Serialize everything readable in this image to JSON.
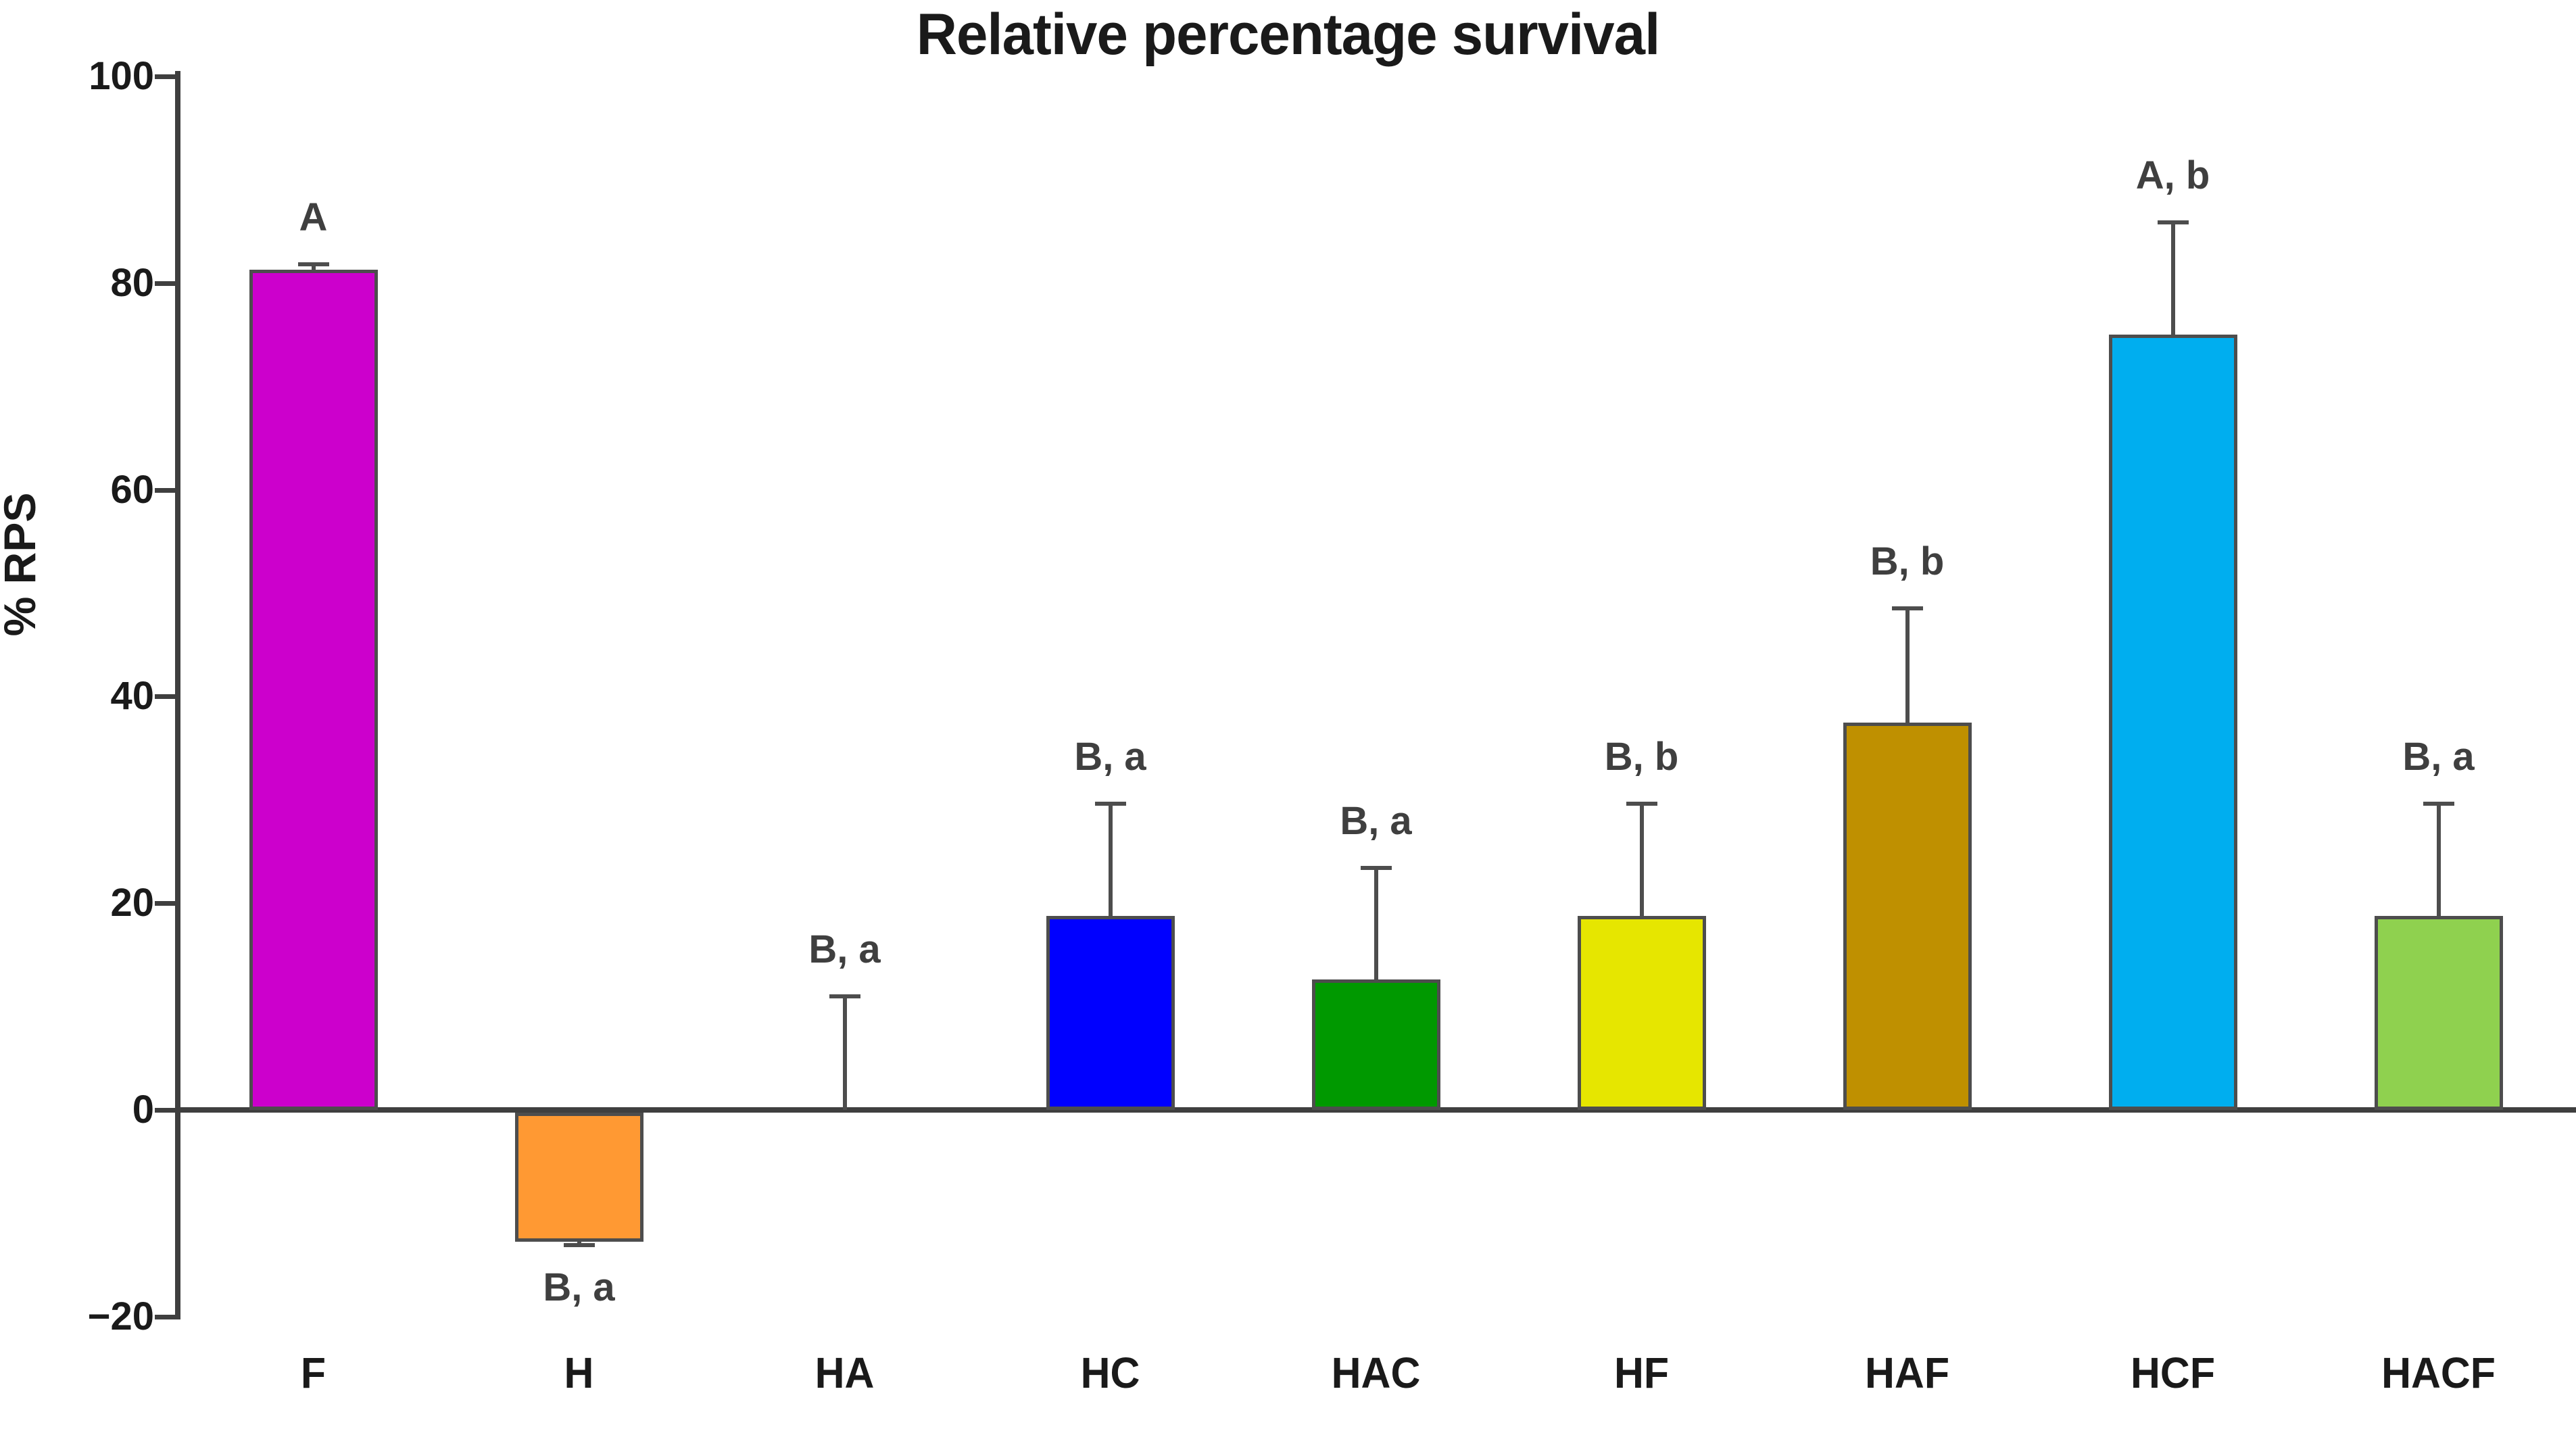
{
  "page": {
    "background": "#ffffff"
  },
  "chart_data": {
    "type": "bar",
    "title": "Relative percentage survival",
    "xlabel": "",
    "ylabel": "% RPS",
    "ylim": [
      -20,
      100
    ],
    "yticks": [
      100,
      80,
      60,
      40,
      20,
      0,
      -20
    ],
    "grid": false,
    "legend_position": "none",
    "categories": [
      "F",
      "H",
      "HA",
      "HC",
      "HAC",
      "HF",
      "HAF",
      "HCF",
      "HACF"
    ],
    "series": [
      {
        "name": "% RPS",
        "values": [
          81.3,
          -12.5,
          0,
          18.8,
          12.6,
          18.8,
          37.5,
          75,
          18.8
        ],
        "errors_up": [
          0.5,
          0,
          11,
          10.8,
          10.8,
          10.8,
          11,
          10.9,
          10.8
        ],
        "errors_down": [
          0,
          0.6,
          0,
          0,
          0,
          0,
          0,
          0,
          0
        ],
        "bar_colors": [
          "#cc00cc",
          "#ff9933",
          "#ffffff",
          "#0000ff",
          "#009900",
          "#e6e600",
          "#bf9000",
          "#00aeef",
          "#8fd14f"
        ],
        "stat_labels": [
          "A",
          "B, a",
          "B, a",
          "B, a",
          "B, a",
          "B, b",
          "B, b",
          "A, b",
          "B, a"
        ],
        "stat_label_positions": [
          "above",
          "below",
          "above",
          "above",
          "above",
          "above",
          "above",
          "above",
          "above"
        ]
      }
    ],
    "colors": {
      "axis": "#3f3f3f",
      "bar_border": "#4d4d4d",
      "error_bar": "#4d4d4d",
      "tick_text": "#1a1a1a",
      "stat_text": "#3f3f3f",
      "title_text": "#1a1a1a"
    }
  }
}
